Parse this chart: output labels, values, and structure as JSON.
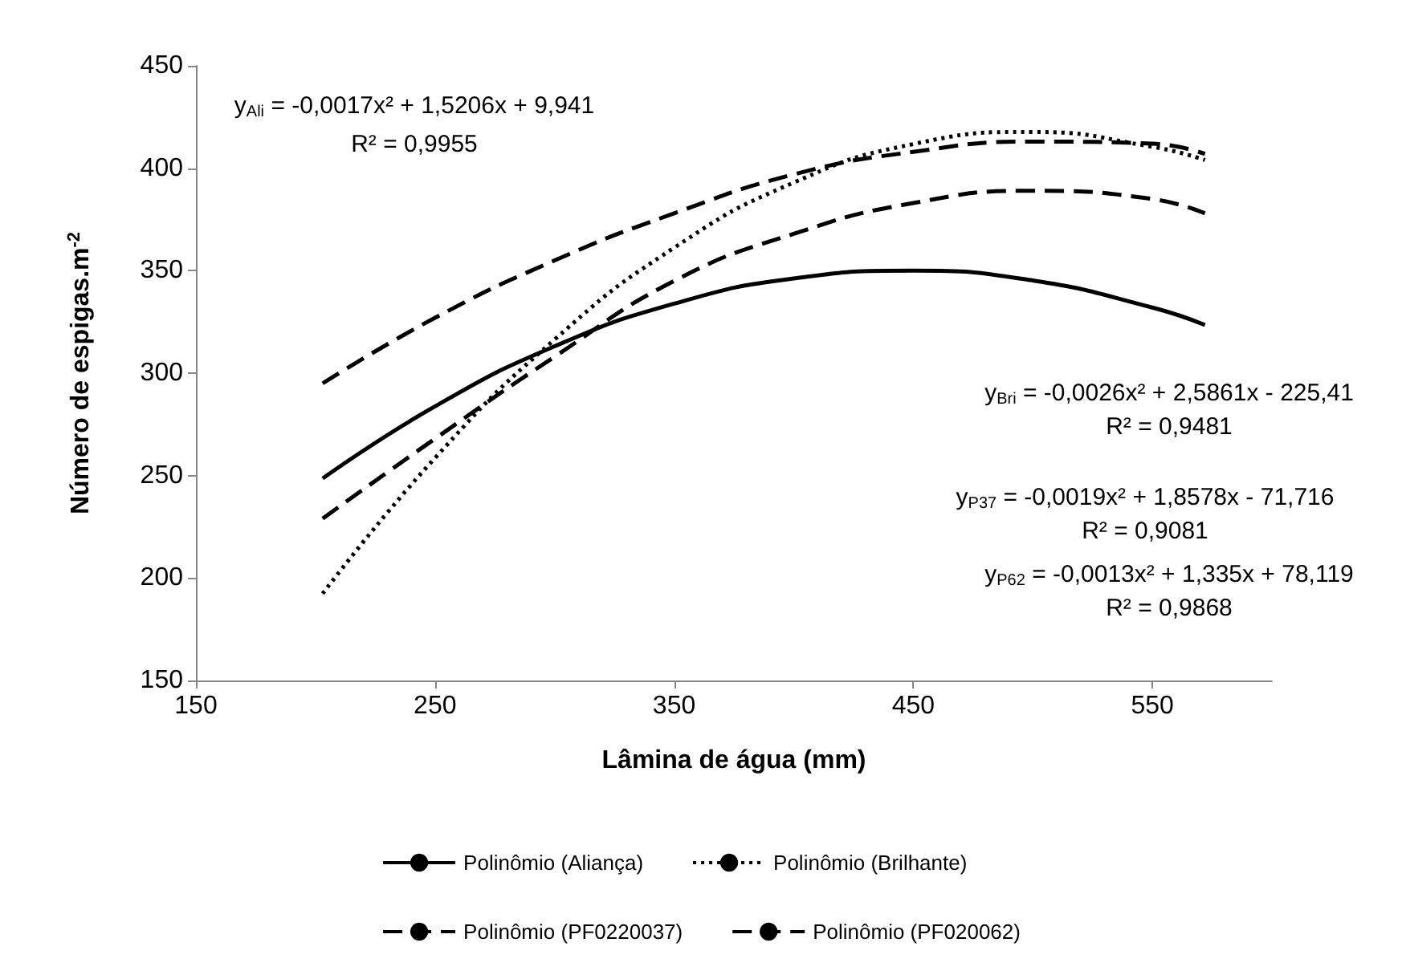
{
  "chart_data": {
    "type": "line",
    "xlabel": "Lâmina de água (mm)",
    "ylabel": "Número de espigas.m$^{-2}$",
    "x": [
      203,
      250,
      300,
      350,
      400,
      450,
      500,
      550,
      572
    ],
    "xlim": [
      150,
      600
    ],
    "xticks": [
      150,
      250,
      350,
      450,
      550
    ],
    "ylim": [
      150,
      450
    ],
    "yticks": [
      150,
      200,
      250,
      300,
      350,
      400,
      450
    ],
    "grid": false,
    "legend": "bottom",
    "marker": "none",
    "series": [
      {
        "name": "Polinômio (Aliança)",
        "color": "#000000",
        "line_style": "solid",
        "values": [
          248.6,
          283.8,
          313.1,
          333.9,
          346.2,
          350.0,
          345.2,
          332.0,
          323.5
        ]
      },
      {
        "name": "Polinômio (Brilhante)",
        "color": "#000000",
        "line_style": "dotted",
        "values": [
          192.4,
          258.6,
          316.4,
          361.2,
          393.0,
          411.8,
          417.7,
          410.5,
          404
        ]
      },
      {
        "name": "Polinômio (PF0220037)",
        "color": "#000000",
        "line_style": "dashed",
        "values": [
          229,
          268,
          308,
          345,
          368,
          383,
          389,
          385,
          378
        ]
      },
      {
        "name": "Polinômio (PF020062)",
        "color": "#000000",
        "line_style": "dashed",
        "values": [
          295,
          327,
          355,
          378,
          397,
          408,
          413,
          412,
          407
        ]
      }
    ],
    "annotations": [
      "y$_{Ali}$ = -0,0017x² + 1,5206x + 9,941",
      "R² = 0,9955",
      "y$_{Bri}$ = -0,0026x² + 2,5861x - 225,41",
      "R² = 0,9481",
      "y$_{P37}$ = -0,0019x² + 1,8578x - 71,716",
      "R² = 0,9081",
      "y$_{P62}$ = -0,0013x² + 1,335x + 78,119",
      "R² = 0,9868"
    ]
  }
}
